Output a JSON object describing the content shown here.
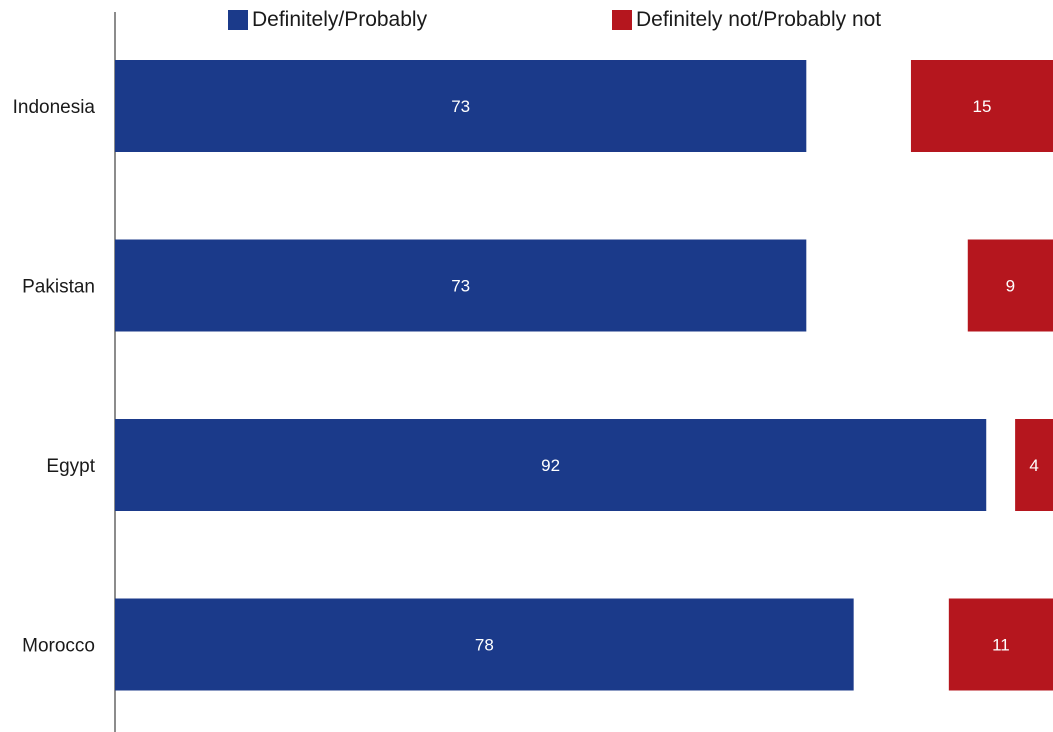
{
  "chart_data": {
    "type": "bar",
    "orientation": "horizontal",
    "title": "",
    "xlabel": "",
    "ylabel": "",
    "categories": [
      "Indonesia",
      "Pakistan",
      "Egypt",
      "Morocco"
    ],
    "series": [
      {
        "name": "Definitely/Probably",
        "values": [
          73,
          73,
          92,
          78
        ],
        "color": "#1b3a8a"
      },
      {
        "name": "Definitely not/Probably not",
        "values": [
          15,
          9,
          4,
          11
        ],
        "color": "#b5161e"
      }
    ],
    "xlim": [
      0,
      100
    ],
    "grid": false,
    "legend_position": "top",
    "second_series_alignment": "right"
  }
}
